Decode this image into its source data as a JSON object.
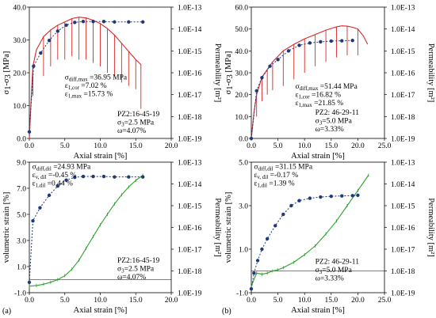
{
  "figure_labels": [
    "(a)",
    "(b)"
  ],
  "chart_data": [
    {
      "type": "line",
      "id": "a-top",
      "xlabel": "Axial strain [%]",
      "ylabel_parts": [
        "σ",
        "1",
        "-σ",
        "3",
        " [MPa]"
      ],
      "y2label": "Permeability [m²]",
      "xlim": [
        0,
        20
      ],
      "ylim": [
        0,
        40
      ],
      "xticks": [
        "0.0",
        "5.0",
        "10.0",
        "15.0",
        "20.0"
      ],
      "yticks": [
        "0.0",
        "10.0",
        "20.0",
        "30.0",
        "40.0"
      ],
      "y2ticks": [
        "1.0E-19",
        "1.0E-18",
        "1.0E-17",
        "1.0E-16",
        "1.0E-15",
        "1.0E-14",
        "1.0E-13"
      ],
      "y2log": true,
      "annotation": [
        [
          "σ",
          "diff,max",
          " =36.95 MPa"
        ],
        [
          "ε",
          "1,cor",
          " =7.02 %"
        ],
        [
          "ε",
          "1,max",
          " =15.73 %"
        ]
      ],
      "sample_info": [
        [
          "PZ2:16-45-19",
          "",
          ""
        ],
        [
          "σ",
          "3",
          "=2.5 MPa"
        ],
        [
          "ω=4.07%",
          "",
          ""
        ]
      ],
      "series": [
        {
          "axis": "left",
          "color": "#d62728",
          "style": "solid",
          "x": [
            0,
            0.3,
            0.5,
            1,
            2,
            3,
            4,
            5,
            6,
            7,
            8,
            9,
            10,
            11,
            12,
            13,
            14,
            15,
            15.73
          ],
          "values": [
            0,
            14,
            22,
            27,
            31,
            33,
            34.5,
            35.5,
            36.5,
            36.95,
            36.7,
            36,
            35,
            33.5,
            31.5,
            29,
            26.5,
            24,
            22.5
          ],
          "cycle_drops": [
            [
              0.5,
              13
            ],
            [
              2,
              19
            ],
            [
              3,
              22
            ],
            [
              4,
              24
            ],
            [
              5,
              24
            ],
            [
              6,
              25
            ],
            [
              7,
              24
            ],
            [
              8,
              24
            ],
            [
              9,
              23
            ],
            [
              10,
              22
            ],
            [
              11,
              20
            ],
            [
              12,
              19
            ],
            [
              13,
              17
            ],
            [
              14,
              16
            ],
            [
              15,
              15
            ],
            [
              15.73,
              9
            ]
          ]
        },
        {
          "axis": "right",
          "color": "#1f3a7a",
          "style": "dotted",
          "markers": true,
          "x": [
            0,
            0.6,
            1.6,
            2.8,
            4,
            5.2,
            6.4,
            7.6,
            9,
            10.5,
            12,
            14,
            16
          ],
          "values": [
            2e-19,
            2e-16,
            8e-16,
            3e-15,
            8e-15,
            1.5e-14,
            2e-14,
            2.2e-14,
            2.2e-14,
            2.2e-14,
            2.1e-14,
            2.1e-14,
            2.1e-14
          ]
        }
      ]
    },
    {
      "type": "line",
      "id": "b-top",
      "xlabel": "Axial strain [%]",
      "ylabel_parts": [
        "σ",
        "1",
        "-σ",
        "3",
        " [MPa]"
      ],
      "y2label": "Permeability [m²]",
      "xlim": [
        0,
        25
      ],
      "ylim": [
        0,
        60
      ],
      "xticks": [
        "0.0",
        "5.0",
        "10.0",
        "15.0",
        "20.0",
        "25.0"
      ],
      "yticks": [
        "0.0",
        "10.0",
        "20.0",
        "30.0",
        "40.0",
        "50.0",
        "60.0"
      ],
      "y2ticks": [
        "1.0E-19",
        "1.0E-18",
        "1.0E-17",
        "1.0E-16",
        "1.0E-15",
        "1.0E-14",
        "1.0E-13"
      ],
      "y2log": true,
      "annotation": [
        [
          "σ",
          "diff,max",
          " =51.44 MPa"
        ],
        [
          "ε",
          "1,cor",
          " =16.82 %"
        ],
        [
          "ε",
          "1,max",
          " =21.85 %"
        ]
      ],
      "sample_info": [
        [
          "PZ2: 46-29-11",
          "",
          ""
        ],
        [
          "σ",
          "3",
          "=5.0 MPa"
        ],
        [
          "ω=3.33%",
          "",
          ""
        ]
      ],
      "series": [
        {
          "axis": "left",
          "color": "#d62728",
          "style": "solid",
          "x": [
            0,
            0.5,
            1,
            2,
            4,
            6,
            8,
            10,
            12,
            14,
            16,
            17,
            18,
            19,
            20,
            21,
            21.85
          ],
          "values": [
            0,
            12,
            20,
            28,
            35,
            40,
            43,
            45.5,
            47.5,
            49.5,
            51,
            51.44,
            51.3,
            50.8,
            50,
            47,
            43
          ],
          "cycle_drops": [
            [
              1,
              10
            ],
            [
              2,
              17
            ],
            [
              3,
              20
            ],
            [
              4,
              22
            ],
            [
              6,
              24
            ],
            [
              8,
              27
            ],
            [
              10,
              30
            ],
            [
              12,
              33
            ],
            [
              14,
              35
            ],
            [
              16,
              37
            ],
            [
              18,
              38
            ],
            [
              20,
              38
            ]
          ]
        },
        {
          "axis": "right",
          "color": "#1f3a7a",
          "style": "dotted",
          "markers": true,
          "x": [
            0,
            1,
            2,
            3.5,
            5,
            7,
            9,
            11,
            13,
            15,
            17,
            19
          ],
          "values": [
            1e-19,
            1.5e-17,
            6e-17,
            2e-16,
            4e-16,
            1e-15,
            1.8e-15,
            2.3e-15,
            2.6e-15,
            2.8e-15,
            2.9e-15,
            3e-15
          ]
        }
      ]
    },
    {
      "type": "line",
      "id": "a-bottom",
      "xlabel": "Axial strain [%]",
      "ylabel_parts": [
        "volumetric strain [%]"
      ],
      "y2label": "Permeability [m²]",
      "xlim": [
        0,
        20
      ],
      "ylim": [
        -1,
        9
      ],
      "xticks": [
        "0.0",
        "5.0",
        "10.0",
        "15.0",
        "20.0"
      ],
      "yticks": [
        "-1.0",
        "1.0",
        "3.0",
        "5.0",
        "7.0",
        "9.0"
      ],
      "y2ticks": [
        "1.0E-19",
        "1.0E-18",
        "1.0E-17",
        "1.0E-16",
        "1.0E-15",
        "1.0E-14",
        "1.0E-13"
      ],
      "y2log": true,
      "annotation": [
        [
          "σ",
          "diff,dil",
          " =24.93 MPa"
        ],
        [
          "ε",
          "v, dil",
          " =-0.45 %"
        ],
        [
          "ε",
          "1,dil",
          " =0.44 %"
        ]
      ],
      "sample_info": [
        [
          "PZ2:16-45-19",
          "",
          ""
        ],
        [
          "σ",
          "3",
          "=2.5 MPa"
        ],
        [
          "ω=4.07%",
          "",
          ""
        ]
      ],
      "series": [
        {
          "axis": "left",
          "color": "#2ca02c",
          "style": "solid",
          "markers": true,
          "x": [
            0,
            1,
            2,
            3,
            4,
            5,
            6,
            7,
            8,
            9,
            10,
            11,
            12,
            13,
            14,
            15,
            16
          ],
          "values": [
            -0.5,
            -0.45,
            -0.35,
            -0.2,
            0,
            0.3,
            0.8,
            1.5,
            2.4,
            3.3,
            4.2,
            5.0,
            5.8,
            6.5,
            7.1,
            7.6,
            8.0
          ]
        },
        {
          "axis": "right",
          "color": "#1f3a7a",
          "style": "dotted",
          "markers": true,
          "x": [
            0,
            0.5,
            1.5,
            2.8,
            4,
            5.2,
            6.4,
            7.6,
            9,
            10.5,
            12,
            14,
            16
          ],
          "values": [
            3e-19,
            2e-16,
            8e-16,
            3e-15,
            8e-15,
            1.5e-14,
            2e-14,
            2.2e-14,
            2.2e-14,
            2.2e-14,
            2.1e-14,
            2.1e-14,
            2.1e-14
          ]
        }
      ]
    },
    {
      "type": "line",
      "id": "b-bottom",
      "xlabel": "Axial strain [%]",
      "ylabel_parts": [
        "volumetric strain [%]"
      ],
      "y2label": "Permeability [m²]",
      "xlim": [
        0,
        25
      ],
      "ylim": [
        -1,
        5
      ],
      "xticks": [
        "0.0",
        "5.0",
        "10.0",
        "15.0",
        "20.0",
        "25.0"
      ],
      "yticks": [
        "-1.0",
        "1.0",
        "3.0",
        "5.0"
      ],
      "y2ticks": [
        "1.0E-19",
        "1.0E-18",
        "1.0E-17",
        "1.0E-16",
        "1.0E-15",
        "1.0E-14",
        "1.0E-13"
      ],
      "y2log": true,
      "annotation": [
        [
          "σ",
          "diff,dil",
          " =31.15 MPa"
        ],
        [
          "ε",
          "v, dil",
          " =-0.17 %"
        ],
        [
          "ε",
          "1,dil",
          " =1.39 %"
        ]
      ],
      "sample_info": [
        [
          "PZ2: 46-29-11",
          "",
          ""
        ],
        [
          "σ",
          "3",
          "=5.0 MPa"
        ],
        [
          "ω=3.33%",
          "",
          ""
        ]
      ],
      "series": [
        {
          "axis": "left",
          "color": "#2ca02c",
          "style": "solid",
          "markers": true,
          "x": [
            0,
            1,
            2,
            3,
            4,
            5,
            6,
            8,
            10,
            12,
            14,
            16,
            18,
            20,
            22
          ],
          "values": [
            -0.7,
            -0.1,
            -0.15,
            -0.1,
            0,
            0.05,
            0.15,
            0.4,
            0.75,
            1.15,
            1.7,
            2.3,
            3.0,
            3.7,
            4.4
          ]
        },
        {
          "axis": "right",
          "color": "#1f3a7a",
          "style": "dotted",
          "markers": true,
          "x": [
            0,
            0.5,
            1.2,
            2,
            3,
            4.5,
            6,
            7.5,
            9,
            11,
            13,
            15,
            17,
            19,
            20
          ],
          "values": [
            1.5e-19,
            8e-19,
            3e-18,
            1e-17,
            3e-17,
            1.2e-16,
            4e-16,
            1e-15,
            1.7e-15,
            2.2e-15,
            2.5e-15,
            2.7e-15,
            2.8e-15,
            2.9e-15,
            3e-15
          ]
        }
      ]
    }
  ]
}
